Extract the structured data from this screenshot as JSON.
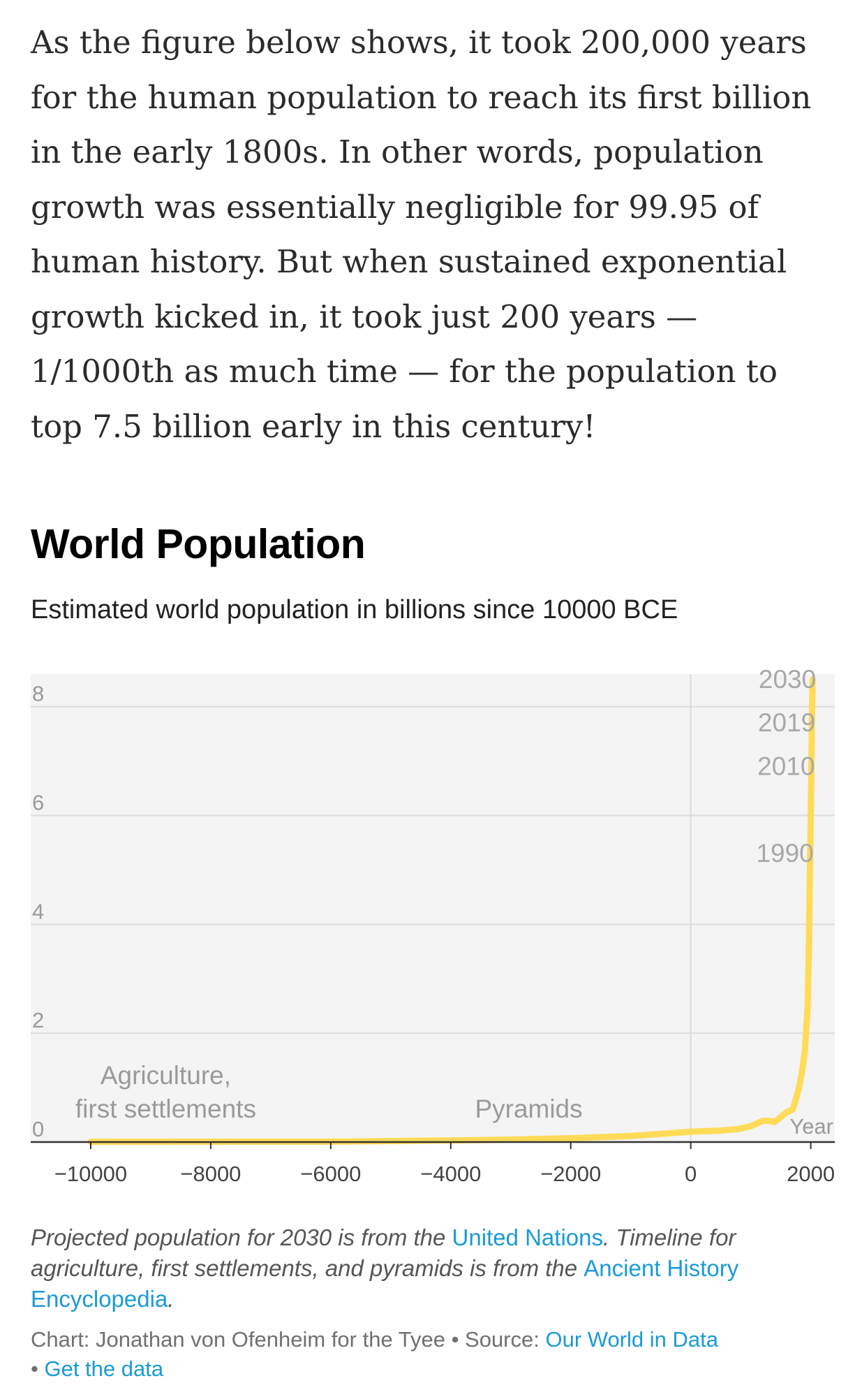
{
  "article": {
    "paragraph": "As the figure below shows, it took 200,000 years for the human population to reach its first billion in the early 1800s. In other words, population growth was essentially negligible for 99.95 of human history. But when sustained exponential growth kicked in, it took just 200 years — 1/1000th as much time — for the population to top 7.5 billion early in this century!"
  },
  "chart_data": {
    "type": "line",
    "title": "World Population",
    "subtitle": "Estimated world population in billions since 10000 BCE",
    "xlabel": "Year",
    "ylabel": "",
    "xlim": [
      -11000,
      2400
    ],
    "ylim": [
      0,
      8.6
    ],
    "x_ticks": [
      -10000,
      -8000,
      -6000,
      -4000,
      -2000,
      0,
      2000
    ],
    "x_tick_labels": [
      "−10000",
      "−8000",
      "−6000",
      "−4000",
      "−2000",
      "0",
      "2000"
    ],
    "y_ticks": [
      0,
      2,
      4,
      6,
      8
    ],
    "y_tick_labels": [
      "0",
      "2",
      "4",
      "6",
      "8"
    ],
    "grid": true,
    "line_color": "#ffdb58",
    "series": [
      {
        "x": [
          -10000,
          -8000,
          -6000,
          -4000,
          -3000,
          -2000,
          -1000,
          0,
          500,
          800,
          1000,
          1100,
          1200,
          1300,
          1400,
          1500,
          1600,
          1700,
          1750,
          1800,
          1850,
          1900,
          1950,
          1970,
          1990,
          2010,
          2019,
          2030
        ],
        "values": [
          0.004,
          0.005,
          0.007,
          0.03,
          0.045,
          0.07,
          0.11,
          0.19,
          0.21,
          0.24,
          0.29,
          0.34,
          0.39,
          0.39,
          0.37,
          0.46,
          0.55,
          0.6,
          0.78,
          0.98,
          1.26,
          1.65,
          2.53,
          3.7,
          5.3,
          6.9,
          7.7,
          8.5
        ]
      }
    ],
    "x_reference_line": 0,
    "point_labels": [
      {
        "x": 1990,
        "y": 5.3,
        "text": "1990"
      },
      {
        "x": 2010,
        "y": 6.9,
        "text": "2010"
      },
      {
        "x": 2019,
        "y": 7.7,
        "text": "2019"
      },
      {
        "x": 2030,
        "y": 8.5,
        "text": "2030"
      }
    ],
    "annotations": [
      {
        "x": -8750,
        "y": 0.45,
        "lines": [
          "Agriculture,",
          "first settlements"
        ]
      },
      {
        "x": -2700,
        "y": 0.45,
        "lines": [
          "Pyramids"
        ]
      }
    ]
  },
  "footnote": {
    "p1": "Projected population for 2030 is from the ",
    "link1": "United Nations",
    "p2": ". Timeline for agriculture, first settlements, and pyramids is from the ",
    "link2": "Ancient History Encyclopedia",
    "p3": "."
  },
  "credits": {
    "prefix": "Chart: Jonathan von Ofenheim for the Tyee • Source: ",
    "source_link": "Our World in Data",
    "bullet": "• ",
    "data_link": "Get the data"
  }
}
